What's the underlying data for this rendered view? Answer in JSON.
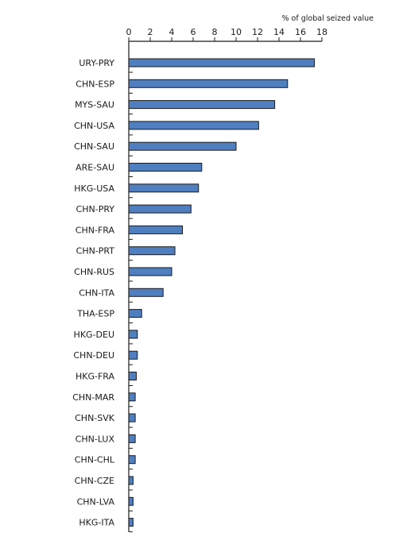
{
  "chart_data": {
    "type": "bar",
    "orientation": "horizontal",
    "title": "",
    "xlabel": "% of global seized value",
    "ylabel": "",
    "xlim": [
      0,
      18
    ],
    "xticks": [
      0,
      2,
      4,
      6,
      8,
      10,
      12,
      14,
      16,
      18
    ],
    "x_axis_position": "top",
    "grid": false,
    "bar_color": "#4f7fc0",
    "categories": [
      "URY-PRY",
      "CHN-ESP",
      "MYS-SAU",
      "CHN-USA",
      "CHN-SAU",
      "ARE-SAU",
      "HKG-USA",
      "CHN-PRY",
      "CHN-FRA",
      "CHN-PRT",
      "CHN-RUS",
      "CHN-ITA",
      "THA-ESP",
      "HKG-DEU",
      "CHN-DEU",
      "HKG-FRA",
      "CHN-MAR",
      "CHN-SVK",
      "CHN-LUX",
      "CHN-CHL",
      "CHN-CZE",
      "CHN-LVA",
      "HKG-ITA"
    ],
    "values": [
      17.3,
      14.8,
      13.6,
      12.1,
      10.0,
      6.8,
      6.5,
      5.8,
      5.0,
      4.3,
      4.0,
      3.2,
      1.2,
      0.8,
      0.8,
      0.7,
      0.6,
      0.6,
      0.6,
      0.6,
      0.4,
      0.4,
      0.4
    ]
  }
}
